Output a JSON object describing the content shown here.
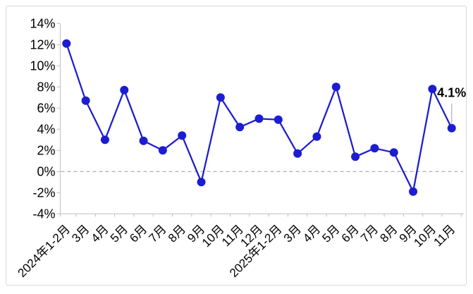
{
  "chart_data": {
    "type": "line",
    "title": "",
    "xlabel": "",
    "ylabel": "",
    "legend": "none",
    "grid": false,
    "zero_line": "dashed",
    "ylim": [
      -4,
      14
    ],
    "ytick_step": 2,
    "ytick_labels": [
      "14%",
      "12%",
      "10%",
      "8%",
      "6%",
      "4%",
      "2%",
      "0%",
      "-2%",
      "-4%"
    ],
    "categories": [
      "2024年1-2月",
      "3月",
      "4月",
      "5月",
      "6月",
      "7月",
      "8月",
      "9月",
      "10月",
      "11月",
      "12月",
      "2025年1-2月",
      "3月",
      "4月",
      "5月",
      "6月",
      "7月",
      "8月",
      "9月",
      "10月",
      "11月"
    ],
    "values": [
      12.1,
      6.7,
      3.0,
      7.7,
      2.9,
      2.0,
      3.4,
      -1.0,
      7.0,
      4.2,
      5.0,
      4.9,
      1.7,
      3.3,
      8.0,
      1.4,
      2.2,
      1.8,
      -1.9,
      7.8,
      4.1
    ],
    "annotation": {
      "text": "4.1%",
      "category": "2025年11月",
      "index": 20,
      "value": 4.1
    }
  },
  "style": {
    "line_color": "#1c1cd2",
    "marker_color": "#1c1cd2",
    "axis_color": "#bfbfbf",
    "zero_line_color": "#a6a6a6",
    "border_color": "#d9d9d9",
    "text_color": "#000000",
    "annotation_color": "#000000",
    "leader_color": "#bfbfbf",
    "background": "#ffffff"
  }
}
